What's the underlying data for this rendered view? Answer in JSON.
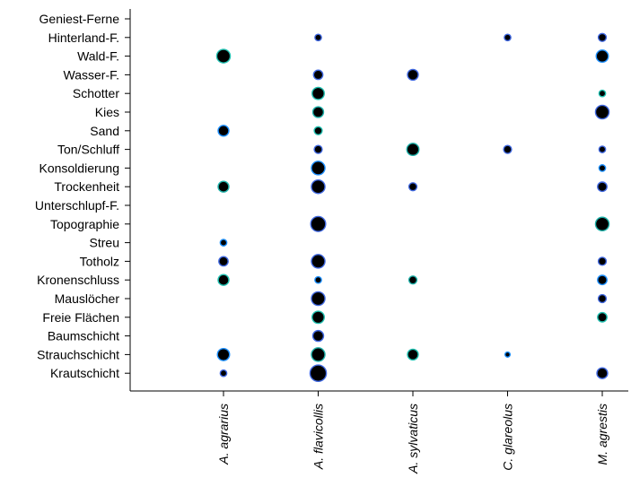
{
  "chart_data": {
    "type": "scatter",
    "categories": [
      "A. agrarius",
      "A. flavicollis",
      "A. sylvaticus",
      "C. glareolus",
      "M. agrestis"
    ],
    "variables": [
      "Geniest-Ferne",
      "Hinterland-F.",
      "Wald-F.",
      "Wasser-F.",
      "Schotter",
      "Kies",
      "Sand",
      "Ton/Schluff",
      "Konsoldierung",
      "Trockenheit",
      "Unterschlupf-F.",
      "Topographie",
      "Streu",
      "Totholz",
      "Kronenschluss",
      "Mauslöcher",
      "Freie Flächen",
      "Baumschicht",
      "Strauchschicht",
      "Krautschicht"
    ],
    "points": [
      {
        "x": "A. flavicollis",
        "y": "Hinterland-F.",
        "size": 3,
        "color": "#4169e1"
      },
      {
        "x": "C. glareolus",
        "y": "Hinterland-F.",
        "size": 3,
        "color": "#4169e1"
      },
      {
        "x": "M. agrestis",
        "y": "Hinterland-F.",
        "size": 4,
        "color": "#4169e1"
      },
      {
        "x": "A. agrarius",
        "y": "Wald-F.",
        "size": 8,
        "color": "#20c0b0"
      },
      {
        "x": "M. agrestis",
        "y": "Wald-F.",
        "size": 7,
        "color": "#1e90ff"
      },
      {
        "x": "A. flavicollis",
        "y": "Wasser-F.",
        "size": 5,
        "color": "#4169e1"
      },
      {
        "x": "A. sylvaticus",
        "y": "Wasser-F.",
        "size": 6,
        "color": "#4169e1"
      },
      {
        "x": "A. flavicollis",
        "y": "Schotter",
        "size": 7,
        "color": "#20c0b0"
      },
      {
        "x": "M. agrestis",
        "y": "Schotter",
        "size": 3,
        "color": "#20c0b0"
      },
      {
        "x": "A. flavicollis",
        "y": "Kies",
        "size": 6,
        "color": "#20b2aa"
      },
      {
        "x": "M. agrestis",
        "y": "Kies",
        "size": 8,
        "color": "#4169e1"
      },
      {
        "x": "A. agrarius",
        "y": "Sand",
        "size": 6,
        "color": "#1e90ff"
      },
      {
        "x": "A. flavicollis",
        "y": "Sand",
        "size": 4,
        "color": "#20c0b0"
      },
      {
        "x": "A. flavicollis",
        "y": "Ton/Schluff",
        "size": 4,
        "color": "#4169e1"
      },
      {
        "x": "A. sylvaticus",
        "y": "Ton/Schluff",
        "size": 7,
        "color": "#20b2aa"
      },
      {
        "x": "C. glareolus",
        "y": "Ton/Schluff",
        "size": 4,
        "color": "#4169e1"
      },
      {
        "x": "M. agrestis",
        "y": "Ton/Schluff",
        "size": 3,
        "color": "#4169e1"
      },
      {
        "x": "A. flavicollis",
        "y": "Konsoldierung",
        "size": 8,
        "color": "#1e90ff"
      },
      {
        "x": "M. agrestis",
        "y": "Konsoldierung",
        "size": 3,
        "color": "#1e90ff"
      },
      {
        "x": "A. agrarius",
        "y": "Trockenheit",
        "size": 6,
        "color": "#20b2aa"
      },
      {
        "x": "A. flavicollis",
        "y": "Trockenheit",
        "size": 8,
        "color": "#4169e1"
      },
      {
        "x": "A. sylvaticus",
        "y": "Trockenheit",
        "size": 4,
        "color": "#4169e1"
      },
      {
        "x": "M. agrestis",
        "y": "Trockenheit",
        "size": 5,
        "color": "#4169e1"
      },
      {
        "x": "A. flavicollis",
        "y": "Topographie",
        "size": 9,
        "color": "#4169e1"
      },
      {
        "x": "M. agrestis",
        "y": "Topographie",
        "size": 8,
        "color": "#20b2aa"
      },
      {
        "x": "A. agrarius",
        "y": "Streu",
        "size": 3,
        "color": "#1e90ff"
      },
      {
        "x": "A. agrarius",
        "y": "Totholz",
        "size": 5,
        "color": "#4169e1"
      },
      {
        "x": "A. flavicollis",
        "y": "Totholz",
        "size": 8,
        "color": "#4169e1"
      },
      {
        "x": "M. agrestis",
        "y": "Totholz",
        "size": 4,
        "color": "#4169e1"
      },
      {
        "x": "A. agrarius",
        "y": "Kronenschluss",
        "size": 6,
        "color": "#20c0b0"
      },
      {
        "x": "A. flavicollis",
        "y": "Kronenschluss",
        "size": 3,
        "color": "#1e90ff"
      },
      {
        "x": "A. sylvaticus",
        "y": "Kronenschluss",
        "size": 4,
        "color": "#20b2aa"
      },
      {
        "x": "M. agrestis",
        "y": "Kronenschluss",
        "size": 5,
        "color": "#1e90ff"
      },
      {
        "x": "A. flavicollis",
        "y": "Mauslöcher",
        "size": 8,
        "color": "#4169e1"
      },
      {
        "x": "M. agrestis",
        "y": "Mauslöcher",
        "size": 4,
        "color": "#4169e1"
      },
      {
        "x": "A. flavicollis",
        "y": "Freie Flächen",
        "size": 7,
        "color": "#20c0b0"
      },
      {
        "x": "M. agrestis",
        "y": "Freie Flächen",
        "size": 5,
        "color": "#20c0b0"
      },
      {
        "x": "A. flavicollis",
        "y": "Baumschicht",
        "size": 6,
        "color": "#4169e1"
      },
      {
        "x": "A. agrarius",
        "y": "Strauchschicht",
        "size": 7,
        "color": "#1e90ff"
      },
      {
        "x": "A. flavicollis",
        "y": "Strauchschicht",
        "size": 8,
        "color": "#20b2aa"
      },
      {
        "x": "A. sylvaticus",
        "y": "Strauchschicht",
        "size": 6,
        "color": "#20c0b0"
      },
      {
        "x": "C. glareolus",
        "y": "Strauchschicht",
        "size": 2,
        "color": "#1e90ff"
      },
      {
        "x": "A. agrarius",
        "y": "Krautschicht",
        "size": 3,
        "color": "#4169e1"
      },
      {
        "x": "A. flavicollis",
        "y": "Krautschicht",
        "size": 10,
        "color": "#4169e1"
      },
      {
        "x": "M. agrestis",
        "y": "Krautschicht",
        "size": 6,
        "color": "#4169e1"
      }
    ],
    "title": "",
    "xlabel": "",
    "ylabel": "",
    "grid": false,
    "legend": "none",
    "marker_fill": "#000000"
  }
}
